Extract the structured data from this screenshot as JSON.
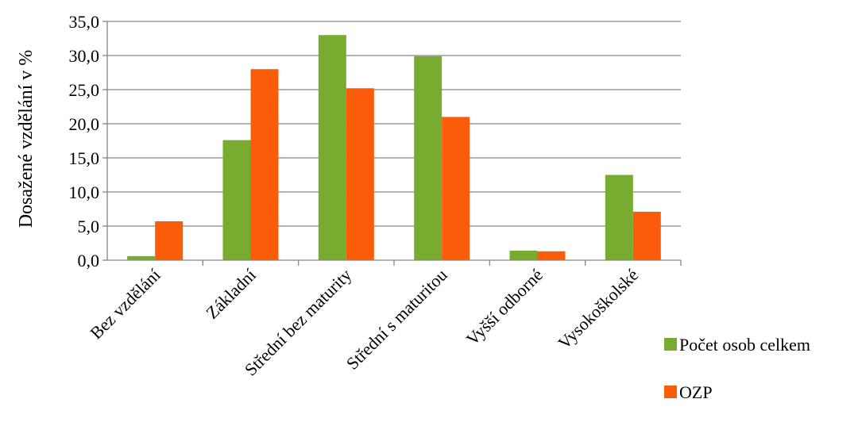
{
  "chart_data": {
    "type": "bar",
    "title": "",
    "xlabel": "",
    "ylabel": "Dosažené vzdělání v %",
    "ylim": [
      0,
      35
    ],
    "ytick_step": 5,
    "ytick_labels": [
      "0,0",
      "5,0",
      "10,0",
      "15,0",
      "20,0",
      "25,0",
      "30,0",
      "35,0"
    ],
    "grid": true,
    "legend_position": "right",
    "categories": [
      "Bez vzdělání",
      "Základní",
      "Střední bez maturity",
      "Střední s maturitou",
      "Vyšší odborné",
      "Vysokoškolské"
    ],
    "series": [
      {
        "name": "Počet osob celkem",
        "color": "#77AC30",
        "values": [
          0.6,
          17.6,
          33.0,
          29.9,
          1.4,
          12.5
        ]
      },
      {
        "name": "OZP",
        "color": "#F95D0A",
        "values": [
          5.7,
          28.0,
          25.2,
          21.0,
          1.3,
          7.1
        ]
      }
    ]
  }
}
